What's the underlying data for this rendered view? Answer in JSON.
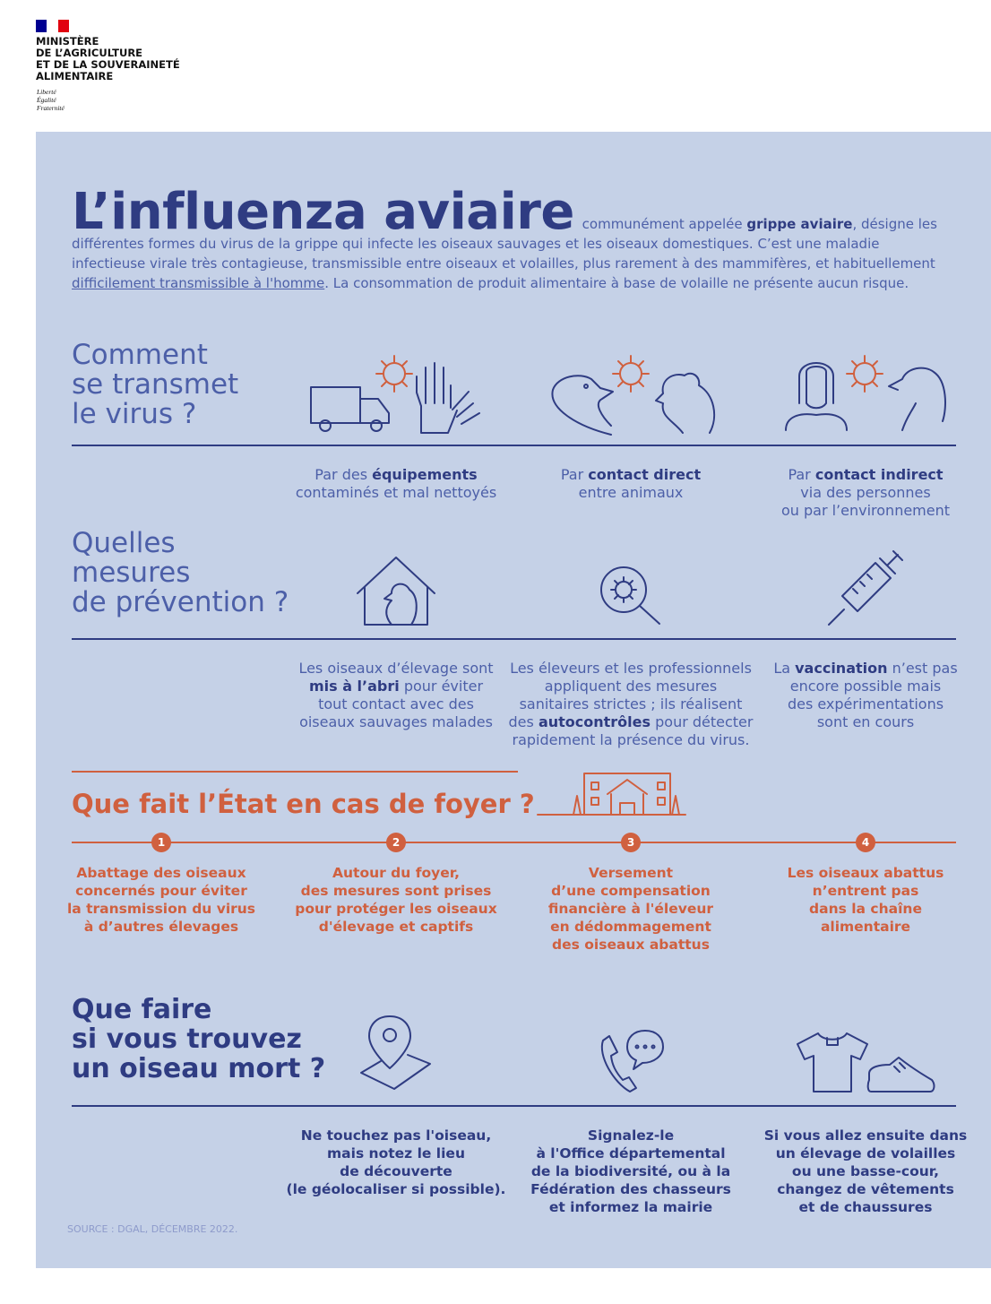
{
  "header": {
    "ministry": [
      "MINISTÈRE",
      "DE L’AGRICULTURE",
      "ET DE LA SOUVERAINETÉ",
      "ALIMENTAIRE"
    ],
    "motto": [
      "Liberté",
      "Égalité",
      "Fraternité"
    ]
  },
  "intro": {
    "title": "L’influenza aviaire",
    "text": [
      {
        "t": "communément appelée "
      },
      {
        "t": "grippe aviaire",
        "b": true
      },
      {
        "t": ", désigne les différentes formes du virus de la grippe qui infecte les oiseaux sauvages et les oiseaux domestiques. C’est une maladie infectieuse virale très contagieuse, transmissible entre oiseaux et volailles, plus rarement à des mammifères, et habituellement "
      },
      {
        "t": "difficilement transmissible à l'homme",
        "u": true
      },
      {
        "t": ". La consommation de produit alimentaire à base de volaille ne présente aucun risque."
      }
    ]
  },
  "transmission": {
    "title": [
      "Comment",
      "se transmet",
      "le virus ?"
    ],
    "captions": [
      [
        [
          {
            "t": "Par des "
          },
          {
            "t": "équipements",
            "b": true
          }
        ],
        [
          {
            "t": "contaminés et mal nettoyés"
          }
        ]
      ],
      [
        [
          {
            "t": "Par "
          },
          {
            "t": "contact direct",
            "b": true
          }
        ],
        [
          {
            "t": "entre animaux"
          }
        ]
      ],
      [
        [
          {
            "t": "Par "
          },
          {
            "t": "contact indirect",
            "b": true
          }
        ],
        [
          {
            "t": "via des personnes"
          }
        ],
        [
          {
            "t": "ou par l’environnement"
          }
        ]
      ]
    ]
  },
  "prevention": {
    "title": [
      "Quelles",
      "mesures",
      "de prévention ?"
    ],
    "captions": [
      [
        [
          {
            "t": "Les oiseaux d’élevage sont"
          }
        ],
        [
          {
            "t": "mis à l’abri",
            "b": true
          },
          {
            "t": " pour éviter"
          }
        ],
        [
          {
            "t": "tout contact avec des"
          }
        ],
        [
          {
            "t": "oiseaux sauvages malades"
          }
        ]
      ],
      [
        [
          {
            "t": "Les éleveurs et les professionnels"
          }
        ],
        [
          {
            "t": "appliquent des mesures"
          }
        ],
        [
          {
            "t": "sanitaires strictes ; ils réalisent"
          }
        ],
        [
          {
            "t": "des "
          },
          {
            "t": "autocontrôles",
            "b": true
          },
          {
            "t": " pour détecter"
          }
        ],
        [
          {
            "t": "rapidement la présence du virus."
          }
        ]
      ],
      [
        [
          {
            "t": "La "
          },
          {
            "t": "vaccination",
            "b": true
          },
          {
            "t": " n’est pas"
          }
        ],
        [
          {
            "t": "encore possible mais"
          }
        ],
        [
          {
            "t": "des expérimentations"
          }
        ],
        [
          {
            "t": "sont en cours"
          }
        ]
      ]
    ]
  },
  "state": {
    "title": "Que fait l’État en cas de foyer ?",
    "steps": [
      {
        "number": "1",
        "lines": [
          "Abattage des oiseaux",
          "concernés pour éviter",
          "la transmission du virus",
          "à d’autres élevages"
        ]
      },
      {
        "number": "2",
        "lines": [
          "Autour du foyer,",
          "des mesures sont prises",
          "pour protéger les oiseaux",
          "d'élevage et captifs"
        ]
      },
      {
        "number": "3",
        "lines": [
          "Versement",
          "d’une compensation",
          "financière à l'éleveur",
          "en dédommagement",
          "des oiseaux abattus"
        ]
      },
      {
        "number": "4",
        "lines": [
          "Les oiseaux abattus",
          "n’entrent pas",
          "dans la chaîne",
          "alimentaire"
        ]
      }
    ]
  },
  "dead_bird": {
    "title": [
      "Que faire",
      "si vous trouvez",
      "un oiseau mort ?"
    ],
    "captions": [
      [
        "Ne touchez pas l'oiseau,",
        "mais notez le lieu",
        "de découverte",
        "(le géolocaliser si possible)."
      ],
      [
        "Signalez-le",
        "à l'Office départemental",
        "de la biodiversité, ou à la",
        "Fédération des chasseurs",
        "et informez la mairie"
      ],
      [
        "Si vous allez ensuite dans",
        "un élevage de volailles",
        "ou une basse-cour,",
        "changez de vêtements",
        "et de chaussures"
      ]
    ]
  },
  "source": "SOURCE : DGAL, DÉCEMBRE 2022."
}
